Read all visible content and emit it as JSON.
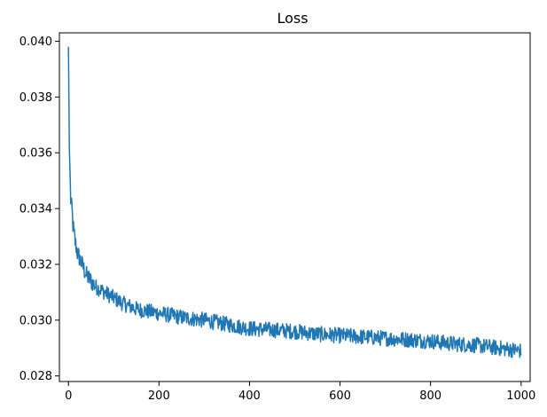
{
  "chart_data": {
    "type": "line",
    "title": "Loss",
    "xlabel": "",
    "ylabel": "",
    "xlim": [
      -20,
      1020
    ],
    "ylim": [
      0.0278,
      0.0403
    ],
    "xticks": [
      0,
      200,
      400,
      600,
      800,
      1000
    ],
    "yticks": [
      0.028,
      0.03,
      0.032,
      0.034,
      0.036,
      0.038,
      0.04
    ],
    "xtick_labels": [
      "0",
      "200",
      "400",
      "600",
      "800",
      "1000"
    ],
    "ytick_labels": [
      "0.028",
      "0.030",
      "0.032",
      "0.034",
      "0.036",
      "0.038",
      "0.040"
    ],
    "grid": false,
    "legend": "none",
    "series": [
      {
        "color": "#1f77b4",
        "x": [
          0,
          2,
          5,
          8,
          10,
          15,
          20,
          30,
          40,
          50,
          60,
          70,
          80,
          100,
          120,
          150,
          180,
          200,
          250,
          300,
          350,
          400,
          450,
          500,
          550,
          600,
          650,
          700,
          750,
          800,
          850,
          900,
          950,
          1000
        ],
        "values": [
          0.0398,
          0.0362,
          0.0343,
          0.0339,
          0.0334,
          0.0328,
          0.0324,
          0.032,
          0.0316,
          0.0314,
          0.0312,
          0.0311,
          0.031,
          0.0308,
          0.0306,
          0.0304,
          0.0303,
          0.03025,
          0.0301,
          0.03,
          0.02985,
          0.0297,
          0.02965,
          0.0296,
          0.0295,
          0.02945,
          0.0294,
          0.02935,
          0.0293,
          0.02925,
          0.02915,
          0.0291,
          0.029,
          0.0289
        ],
        "noise": 0.00028
      }
    ]
  }
}
